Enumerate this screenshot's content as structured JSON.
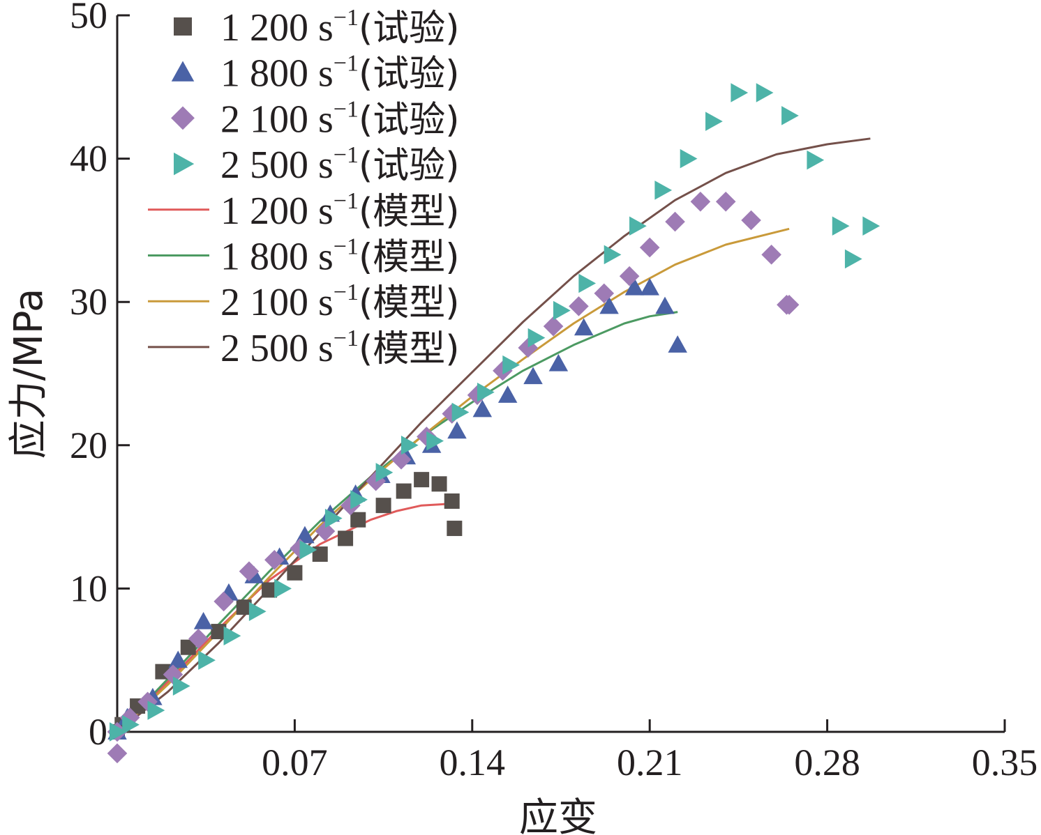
{
  "chart_data": {
    "type": "scatter",
    "xlabel": "应变",
    "ylabel": "应力/MPa",
    "xlim": [
      0,
      0.35
    ],
    "ylim": [
      0,
      50
    ],
    "xticks": [
      "0.07",
      "0.14",
      "0.21",
      "0.28",
      "0.35"
    ],
    "yticks": [
      "0",
      "10",
      "20",
      "30",
      "40",
      "50"
    ],
    "grid": false,
    "legend_position": "top-left",
    "series": [
      {
        "name": "1 200 s-1(试验)",
        "label_num": "1 200 s",
        "label_sup": "−1",
        "label_tag": "(试验)",
        "kind": "scatter",
        "marker": "square",
        "color": "#56504c",
        "x": [
          0.0,
          0.002,
          0.008,
          0.018,
          0.028,
          0.04,
          0.05,
          0.06,
          0.07,
          0.08,
          0.09,
          0.095,
          0.105,
          0.113,
          0.12,
          0.127,
          0.132,
          0.133
        ],
        "y": [
          0.0,
          0.5,
          1.8,
          4.2,
          5.9,
          7.0,
          8.7,
          9.9,
          11.1,
          12.4,
          13.5,
          14.8,
          15.8,
          16.8,
          17.6,
          17.3,
          16.1,
          14.2
        ]
      },
      {
        "name": "1 800 s-1(试验)",
        "label_num": "1 800 s",
        "label_sup": "−1",
        "label_tag": "(试验)",
        "kind": "scatter",
        "marker": "triangle-up",
        "color": "#4a62a6",
        "x": [
          0.0,
          0.004,
          0.014,
          0.024,
          0.034,
          0.044,
          0.054,
          0.064,
          0.074,
          0.084,
          0.094,
          0.104,
          0.114,
          0.124,
          0.134,
          0.144,
          0.154,
          0.164,
          0.174,
          0.184,
          0.194,
          0.204,
          0.21,
          0.216,
          0.221
        ],
        "y": [
          0.0,
          1.0,
          2.4,
          5.0,
          7.7,
          9.7,
          10.9,
          12.2,
          13.7,
          15.2,
          16.6,
          17.9,
          19.2,
          20.0,
          21.0,
          22.5,
          23.5,
          24.8,
          25.7,
          28.2,
          29.7,
          31.0,
          31.0,
          29.7,
          27.0
        ]
      },
      {
        "name": "2 100 s-1(试验)",
        "label_num": "2 100 s",
        "label_sup": "−1",
        "label_tag": "(试验)",
        "kind": "scatter",
        "marker": "diamond",
        "color": "#9e7bb5",
        "x": [
          0.0,
          0.005,
          0.012,
          0.022,
          0.032,
          0.042,
          0.052,
          0.062,
          0.072,
          0.082,
          0.092,
          0.102,
          0.112,
          0.122,
          0.132,
          0.142,
          0.152,
          0.162,
          0.172,
          0.182,
          0.192,
          0.202,
          0.21,
          0.22,
          0.23,
          0.24,
          0.25,
          0.258,
          0.264,
          0.265,
          0.0
        ],
        "y": [
          0.0,
          1.0,
          2.1,
          4.0,
          6.5,
          9.1,
          11.2,
          12.0,
          12.8,
          14.0,
          15.8,
          17.5,
          19.0,
          20.6,
          22.2,
          23.5,
          25.2,
          26.8,
          28.3,
          29.7,
          30.6,
          31.8,
          33.8,
          35.6,
          37.0,
          37.0,
          35.7,
          33.3,
          29.8,
          29.8,
          -1.5
        ]
      },
      {
        "name": "2 500 s-1(试验)",
        "label_num": "2 500 s",
        "label_sup": "−1",
        "label_tag": "(试验)",
        "kind": "scatter",
        "marker": "triangle-right",
        "color": "#4db3a8",
        "x": [
          0.0,
          0.005,
          0.015,
          0.025,
          0.035,
          0.045,
          0.055,
          0.065,
          0.075,
          0.085,
          0.095,
          0.105,
          0.115,
          0.125,
          0.135,
          0.145,
          0.155,
          0.165,
          0.175,
          0.185,
          0.195,
          0.205,
          0.215,
          0.225,
          0.235,
          0.245,
          0.255,
          0.265,
          0.275,
          0.285,
          0.29,
          0.297
        ],
        "y": [
          0.0,
          0.5,
          1.5,
          3.2,
          5.0,
          6.7,
          8.4,
          10.0,
          12.7,
          14.9,
          16.2,
          18.1,
          20.0,
          20.3,
          22.3,
          23.7,
          25.6,
          27.5,
          29.4,
          31.3,
          33.3,
          35.3,
          37.8,
          40.0,
          42.6,
          44.6,
          44.6,
          43.0,
          39.9,
          35.3,
          33.0,
          35.3
        ]
      },
      {
        "name": "1 200 s-1(模型)",
        "label_num": "1 200 s",
        "label_sup": "−1",
        "label_tag": "(模型)",
        "kind": "line",
        "color": "#e05a5a",
        "x": [
          0.0,
          0.02,
          0.04,
          0.06,
          0.08,
          0.1,
          0.11,
          0.12,
          0.13,
          0.133
        ],
        "y": [
          0.0,
          3.5,
          7.2,
          10.6,
          13.1,
          14.8,
          15.4,
          15.8,
          15.9,
          15.9
        ]
      },
      {
        "name": "1 800 s-1(模型)",
        "label_num": "1 800 s",
        "label_sup": "−1",
        "label_tag": "(模型)",
        "kind": "line",
        "color": "#4c9a62",
        "x": [
          0.0,
          0.02,
          0.04,
          0.06,
          0.08,
          0.1,
          0.12,
          0.14,
          0.16,
          0.18,
          0.2,
          0.21,
          0.221
        ],
        "y": [
          0.0,
          3.7,
          7.5,
          11.2,
          14.7,
          17.8,
          20.6,
          23.0,
          25.2,
          27.0,
          28.5,
          29.0,
          29.3
        ]
      },
      {
        "name": "2 100 s-1(模型)",
        "label_num": "2 100 s",
        "label_sup": "−1",
        "label_tag": "(模型)",
        "kind": "line",
        "color": "#c99a3a",
        "x": [
          0.0,
          0.02,
          0.04,
          0.06,
          0.08,
          0.1,
          0.12,
          0.14,
          0.16,
          0.18,
          0.2,
          0.22,
          0.24,
          0.265
        ],
        "y": [
          0.0,
          3.3,
          7.0,
          10.8,
          14.4,
          17.6,
          20.6,
          23.4,
          26.0,
          28.5,
          30.7,
          32.6,
          34.0,
          35.1
        ]
      },
      {
        "name": "2 500 s-1(模型)",
        "label_num": "2 500 s",
        "label_sup": "−1",
        "label_tag": "(模型)",
        "kind": "line",
        "color": "#74504a",
        "x": [
          0.0,
          0.02,
          0.04,
          0.06,
          0.08,
          0.1,
          0.12,
          0.14,
          0.16,
          0.18,
          0.2,
          0.22,
          0.24,
          0.26,
          0.28,
          0.297
        ],
        "y": [
          0.0,
          2.8,
          6.2,
          10.0,
          13.9,
          17.8,
          21.6,
          25.1,
          28.6,
          31.8,
          34.6,
          37.1,
          39.0,
          40.3,
          41.0,
          41.4
        ]
      }
    ]
  }
}
